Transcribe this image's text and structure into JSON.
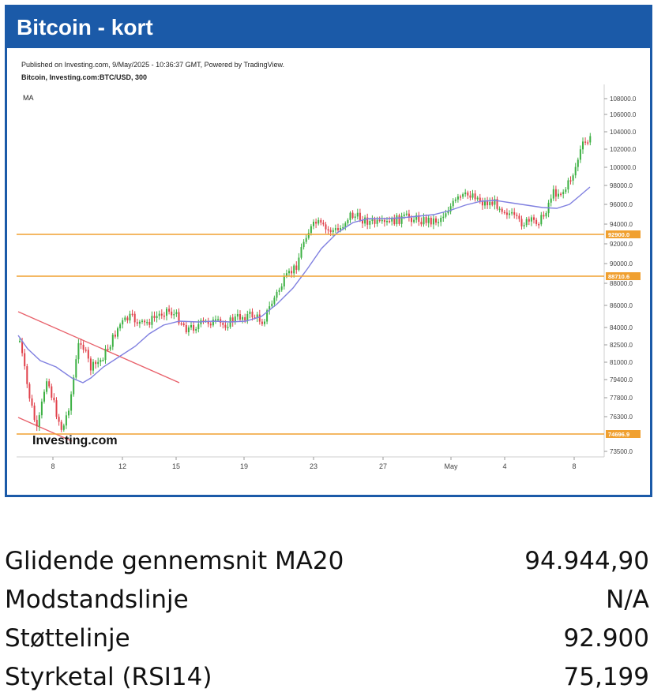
{
  "header": {
    "title": "Bitcoin - kort"
  },
  "chart_meta": {
    "published": "Published on Investing.com, 9/May/2025 - 10:36:37 GMT, Powered by TradingView.",
    "symbol": "Bitcoin, Investing.com:BTC/USD, 300",
    "indicator": "MA",
    "watermark": "Investing.com"
  },
  "chart_data": {
    "type": "candlestick",
    "y_ticks": [
      "108000.0",
      "106000.0",
      "104000.0",
      "102000.0",
      "100000.0",
      "98000.0",
      "96000.0",
      "94000.0",
      "92000.0",
      "90000.0",
      "88000.0",
      "86000.0",
      "84000.0",
      "82500.0",
      "81000.0",
      "79400.0",
      "77800.0",
      "76300.0",
      "73500.0"
    ],
    "x_ticks": [
      "8",
      "12",
      "15",
      "19",
      "23",
      "27",
      "May",
      "4",
      "8"
    ],
    "horizontal_levels": [
      {
        "label": "92900.0",
        "color": "#f0a030"
      },
      {
        "label": "88710.6",
        "color": "#f0a030"
      },
      {
        "label": "74696.9",
        "color": "#f0a030"
      }
    ],
    "colors": {
      "up": "#3cb043",
      "down": "#e0414b",
      "ma": "#8080e0",
      "trendline": "#e8606a"
    }
  },
  "stats": [
    {
      "label": "Glidende gennemsnit MA20",
      "value": "94.944,90"
    },
    {
      "label": "Modstandslinje",
      "value": "N/A"
    },
    {
      "label": "Støttelinje",
      "value": "92.900"
    },
    {
      "label": "Styrketal (RSI14)",
      "value": "75,199"
    }
  ]
}
